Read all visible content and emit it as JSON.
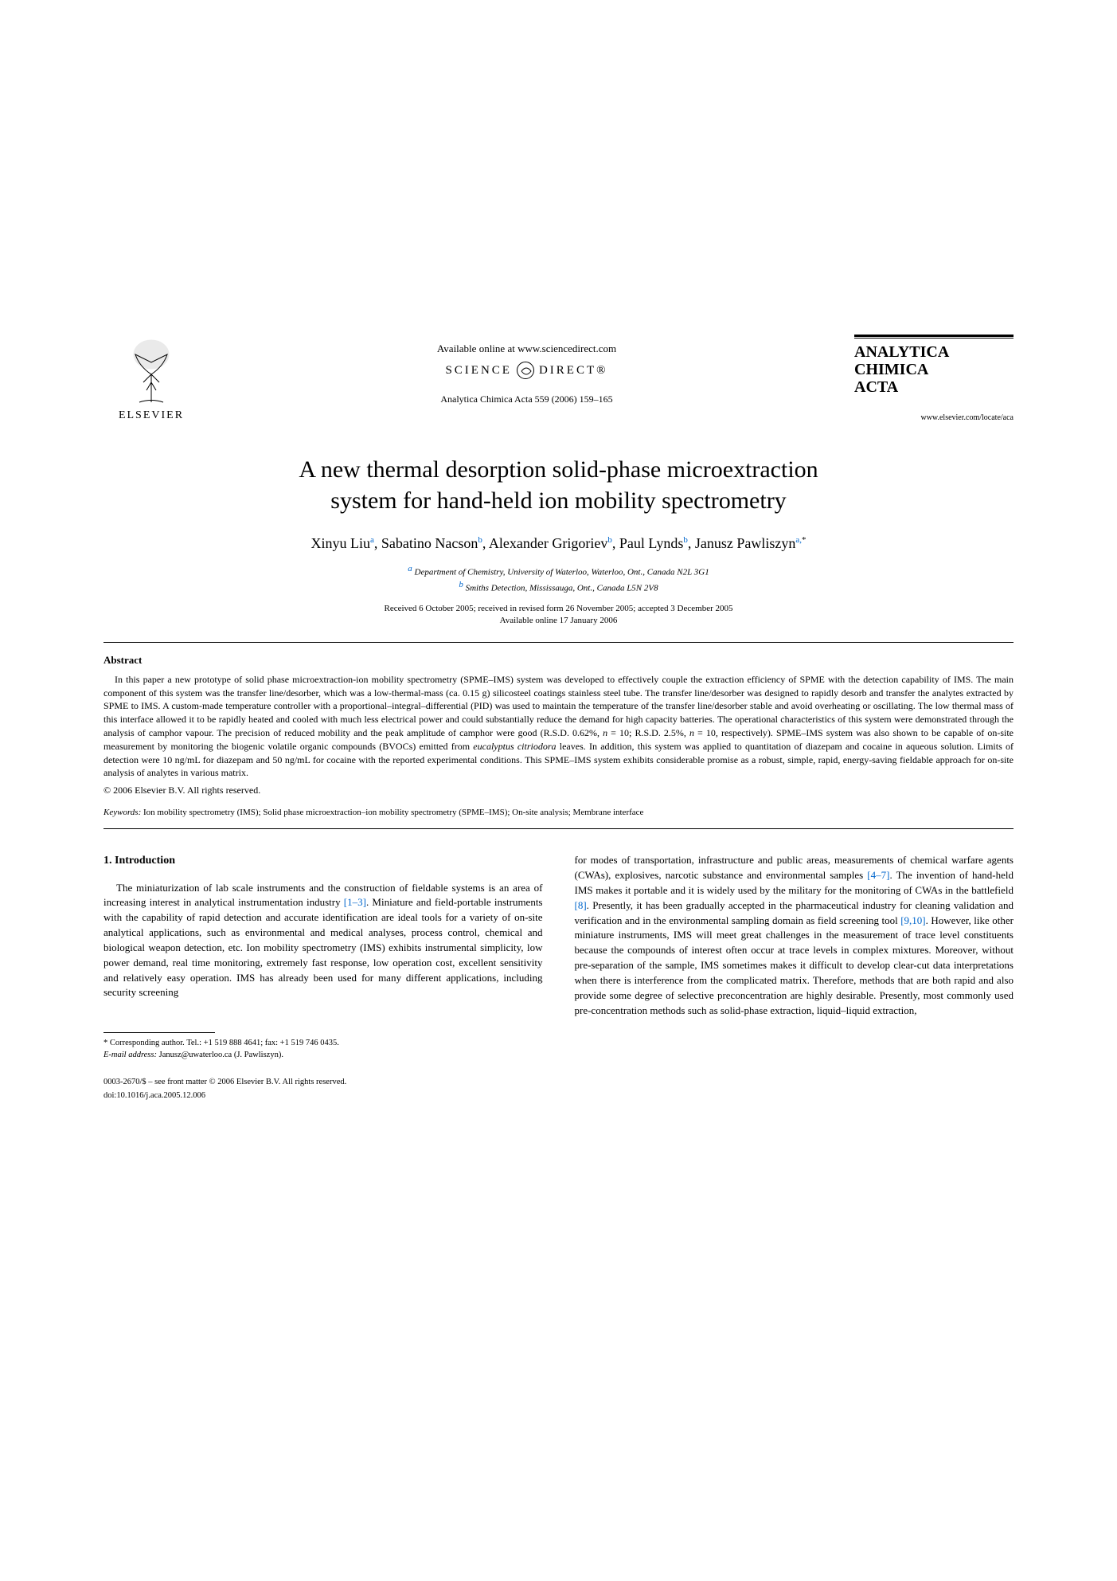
{
  "header": {
    "publisher": "ELSEVIER",
    "available_online": "Available online at www.sciencedirect.com",
    "science_direct_left": "SCIENCE",
    "science_direct_right": "DIRECT®",
    "journal_ref": "Analytica Chimica Acta 559 (2006) 159–165",
    "journal_name_l1": "ANALYTICA",
    "journal_name_l2": "CHIMICA",
    "journal_name_l3": "ACTA",
    "journal_url": "www.elsevier.com/locate/aca"
  },
  "title_l1": "A new thermal desorption solid-phase microextraction",
  "title_l2": "system for hand-held ion mobility spectrometry",
  "authors": {
    "a1": "Xinyu Liu",
    "s1": "a",
    "a2": "Sabatino Nacson",
    "s2": "b",
    "a3": "Alexander Grigoriev",
    "s3": "b",
    "a4": "Paul Lynds",
    "s4": "b",
    "a5": "Janusz Pawliszyn",
    "s5": "a,",
    "star": "*"
  },
  "affiliations": {
    "a": "Department of Chemistry, University of Waterloo, Waterloo, Ont., Canada N2L 3G1",
    "b": "Smiths Detection, Mississauga, Ont., Canada L5N 2V8"
  },
  "dates": {
    "received": "Received 6 October 2005; received in revised form 26 November 2005; accepted 3 December 2005",
    "available": "Available online 17 January 2006"
  },
  "abstract": {
    "label": "Abstract",
    "text": "In this paper a new prototype of solid phase microextraction-ion mobility spectrometry (SPME–IMS) system was developed to effectively couple the extraction efficiency of SPME with the detection capability of IMS. The main component of this system was the transfer line/desorber, which was a low-thermal-mass (ca. 0.15 g) silicosteel coatings stainless steel tube. The transfer line/desorber was designed to rapidly desorb and transfer the analytes extracted by SPME to IMS. A custom-made temperature controller with a proportional–integral–differential (PID) was used to maintain the temperature of the transfer line/desorber stable and avoid overheating or oscillating. The low thermal mass of this interface allowed it to be rapidly heated and cooled with much less electrical power and could substantially reduce the demand for high capacity batteries. The operational characteristics of this system were demonstrated through the analysis of camphor vapour. The precision of reduced mobility and the peak amplitude of camphor were good (R.S.D. 0.62%, n = 10; R.S.D. 2.5%, n = 10, respectively). SPME–IMS system was also shown to be capable of on-site measurement by monitoring the biogenic volatile organic compounds (BVOCs) emitted from eucalyptus citriodora leaves. In addition, this system was applied to quantitation of diazepam and cocaine in aqueous solution. Limits of detection were 10 ng/mL for diazepam and 50 ng/mL for cocaine with the reported experimental conditions. This SPME–IMS system exhibits considerable promise as a robust, simple, rapid, energy-saving fieldable approach for on-site analysis of analytes in various matrix.",
    "copyright": "© 2006 Elsevier B.V. All rights reserved."
  },
  "keywords": {
    "label": "Keywords:",
    "text": "Ion mobility spectrometry (IMS); Solid phase microextraction–ion mobility spectrometry (SPME–IMS); On-site analysis; Membrane interface"
  },
  "intro": {
    "heading": "1.  Introduction",
    "col1": "The miniaturization of lab scale instruments and the construction of fieldable systems is an area of increasing interest in analytical instrumentation industry [1–3]. Miniature and field-portable instruments with the capability of rapid detection and accurate identification are ideal tools for a variety of on-site analytical applications, such as environmental and medical analyses, process control, chemical and biological weapon detection, etc. Ion mobility spectrometry (IMS) exhibits instrumental simplicity, low power demand, real time monitoring, extremely fast response, low operation cost, excellent sensitivity and relatively easy operation. IMS has already been used for many different applications, including security screening",
    "col2": "for modes of transportation, infrastructure and public areas, measurements of chemical warfare agents (CWAs), explosives, narcotic substance and environmental samples [4–7]. The invention of hand-held IMS makes it portable and it is widely used by the military for the monitoring of CWAs in the battlefield [8]. Presently, it has been gradually accepted in the pharmaceutical industry for cleaning validation and verification and in the environmental sampling domain as field screening tool [9,10]. However, like other miniature instruments, IMS will meet great challenges in the measurement of trace level constituents because the compounds of interest often occur at trace levels in complex mixtures. Moreover, without pre-separation of the sample, IMS sometimes makes it difficult to develop clear-cut data interpretations when there is interference from the complicated matrix. Therefore, methods that are both rapid and also provide some degree of selective preconcentration are highly desirable. Presently, most commonly used pre-concentration methods such as solid-phase extraction, liquid–liquid extraction,"
  },
  "footnote": {
    "corr": "* Corresponding author. Tel.: +1 519 888 4641; fax: +1 519 746 0435.",
    "email_label": "E-mail address:",
    "email": "Janusz@uwaterloo.ca (J. Pawliszyn)."
  },
  "doi": {
    "line1": "0003-2670/$ – see front matter © 2006 Elsevier B.V. All rights reserved.",
    "line2": "doi:10.1016/j.aca.2005.12.006"
  },
  "colors": {
    "link": "#0066cc",
    "text": "#000000",
    "bg": "#ffffff"
  }
}
